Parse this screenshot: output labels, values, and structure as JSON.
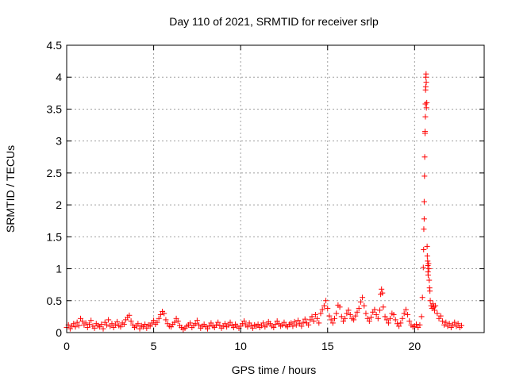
{
  "chart_data": {
    "type": "scatter",
    "title": "Day 110 of 2021, SRMTID for receiver srlp",
    "xlabel": "GPS time / hours",
    "ylabel": "SRMTID / TECUs",
    "xlim": [
      0,
      24
    ],
    "ylim": [
      0,
      4.5
    ],
    "xticks": [
      0,
      5,
      10,
      15,
      20
    ],
    "xtick_labels": [
      "0",
      "5",
      "10",
      "15",
      "20"
    ],
    "yticks": [
      0,
      0.5,
      1,
      1.5,
      2,
      2.5,
      3,
      3.5,
      4,
      4.5
    ],
    "ytick_labels": [
      "0",
      "0.5",
      "1",
      "1.5",
      "2",
      "2.5",
      "3",
      "3.5",
      "4",
      "4.5"
    ],
    "grid": true,
    "marker": "+",
    "color": "#ff0000",
    "series": [
      {
        "name": "SRMTID",
        "points": [
          [
            0.0,
            0.08
          ],
          [
            0.1,
            0.12
          ],
          [
            0.2,
            0.06
          ],
          [
            0.3,
            0.1
          ],
          [
            0.4,
            0.14
          ],
          [
            0.5,
            0.09
          ],
          [
            0.6,
            0.16
          ],
          [
            0.7,
            0.11
          ],
          [
            0.8,
            0.22
          ],
          [
            0.9,
            0.18
          ],
          [
            1.0,
            0.12
          ],
          [
            1.1,
            0.15
          ],
          [
            1.2,
            0.08
          ],
          [
            1.3,
            0.13
          ],
          [
            1.4,
            0.19
          ],
          [
            1.5,
            0.1
          ],
          [
            1.6,
            0.07
          ],
          [
            1.7,
            0.14
          ],
          [
            1.8,
            0.11
          ],
          [
            1.9,
            0.09
          ],
          [
            2.0,
            0.13
          ],
          [
            2.1,
            0.06
          ],
          [
            2.2,
            0.16
          ],
          [
            2.3,
            0.12
          ],
          [
            2.4,
            0.2
          ],
          [
            2.5,
            0.1
          ],
          [
            2.6,
            0.14
          ],
          [
            2.7,
            0.08
          ],
          [
            2.8,
            0.12
          ],
          [
            2.9,
            0.17
          ],
          [
            3.0,
            0.11
          ],
          [
            3.1,
            0.09
          ],
          [
            3.2,
            0.15
          ],
          [
            3.3,
            0.13
          ],
          [
            3.4,
            0.2
          ],
          [
            3.5,
            0.24
          ],
          [
            3.6,
            0.27
          ],
          [
            3.7,
            0.18
          ],
          [
            3.8,
            0.12
          ],
          [
            3.9,
            0.08
          ],
          [
            4.0,
            0.1
          ],
          [
            4.1,
            0.14
          ],
          [
            4.2,
            0.06
          ],
          [
            4.3,
            0.11
          ],
          [
            4.4,
            0.09
          ],
          [
            4.5,
            0.13
          ],
          [
            4.6,
            0.07
          ],
          [
            4.7,
            0.12
          ],
          [
            4.8,
            0.1
          ],
          [
            4.9,
            0.15
          ],
          [
            5.0,
            0.19
          ],
          [
            5.1,
            0.13
          ],
          [
            5.2,
            0.16
          ],
          [
            5.3,
            0.22
          ],
          [
            5.4,
            0.28
          ],
          [
            5.5,
            0.33
          ],
          [
            5.6,
            0.3
          ],
          [
            5.7,
            0.2
          ],
          [
            5.8,
            0.14
          ],
          [
            5.9,
            0.1
          ],
          [
            6.0,
            0.09
          ],
          [
            6.1,
            0.13
          ],
          [
            6.2,
            0.16
          ],
          [
            6.3,
            0.22
          ],
          [
            6.4,
            0.18
          ],
          [
            6.5,
            0.11
          ],
          [
            6.6,
            0.08
          ],
          [
            6.7,
            0.05
          ],
          [
            6.8,
            0.07
          ],
          [
            6.9,
            0.1
          ],
          [
            7.0,
            0.12
          ],
          [
            7.1,
            0.15
          ],
          [
            7.2,
            0.08
          ],
          [
            7.3,
            0.11
          ],
          [
            7.4,
            0.14
          ],
          [
            7.5,
            0.19
          ],
          [
            7.6,
            0.12
          ],
          [
            7.7,
            0.07
          ],
          [
            7.8,
            0.1
          ],
          [
            7.9,
            0.13
          ],
          [
            8.0,
            0.09
          ],
          [
            8.1,
            0.06
          ],
          [
            8.2,
            0.11
          ],
          [
            8.3,
            0.15
          ],
          [
            8.4,
            0.1
          ],
          [
            8.5,
            0.08
          ],
          [
            8.6,
            0.12
          ],
          [
            8.7,
            0.16
          ],
          [
            8.8,
            0.11
          ],
          [
            8.9,
            0.07
          ],
          [
            9.0,
            0.1
          ],
          [
            9.1,
            0.14
          ],
          [
            9.2,
            0.09
          ],
          [
            9.3,
            0.12
          ],
          [
            9.4,
            0.16
          ],
          [
            9.5,
            0.11
          ],
          [
            9.6,
            0.08
          ],
          [
            9.7,
            0.13
          ],
          [
            9.8,
            0.1
          ],
          [
            9.9,
            0.07
          ],
          [
            10.0,
            0.1
          ],
          [
            10.1,
            0.14
          ],
          [
            10.2,
            0.18
          ],
          [
            10.3,
            0.12
          ],
          [
            10.4,
            0.09
          ],
          [
            10.5,
            0.15
          ],
          [
            10.6,
            0.11
          ],
          [
            10.7,
            0.07
          ],
          [
            10.8,
            0.12
          ],
          [
            10.9,
            0.1
          ],
          [
            11.0,
            0.13
          ],
          [
            11.1,
            0.08
          ],
          [
            11.2,
            0.11
          ],
          [
            11.3,
            0.15
          ],
          [
            11.4,
            0.09
          ],
          [
            11.5,
            0.12
          ],
          [
            11.6,
            0.17
          ],
          [
            11.7,
            0.14
          ],
          [
            11.8,
            0.1
          ],
          [
            11.9,
            0.08
          ],
          [
            12.0,
            0.13
          ],
          [
            12.1,
            0.18
          ],
          [
            12.2,
            0.14
          ],
          [
            12.3,
            0.1
          ],
          [
            12.4,
            0.12
          ],
          [
            12.5,
            0.16
          ],
          [
            12.6,
            0.11
          ],
          [
            12.7,
            0.09
          ],
          [
            12.8,
            0.13
          ],
          [
            12.9,
            0.15
          ],
          [
            13.0,
            0.1
          ],
          [
            13.1,
            0.17
          ],
          [
            13.2,
            0.12
          ],
          [
            13.3,
            0.19
          ],
          [
            13.4,
            0.14
          ],
          [
            13.5,
            0.1
          ],
          [
            13.6,
            0.16
          ],
          [
            13.7,
            0.21
          ],
          [
            13.8,
            0.15
          ],
          [
            13.9,
            0.12
          ],
          [
            14.0,
            0.2
          ],
          [
            14.1,
            0.25
          ],
          [
            14.2,
            0.18
          ],
          [
            14.3,
            0.28
          ],
          [
            14.4,
            0.22
          ],
          [
            14.5,
            0.15
          ],
          [
            14.6,
            0.3
          ],
          [
            14.7,
            0.36
          ],
          [
            14.8,
            0.42
          ],
          [
            14.9,
            0.5
          ],
          [
            15.0,
            0.38
          ],
          [
            15.1,
            0.26
          ],
          [
            15.2,
            0.2
          ],
          [
            15.3,
            0.15
          ],
          [
            15.4,
            0.22
          ],
          [
            15.5,
            0.3
          ],
          [
            15.6,
            0.43
          ],
          [
            15.7,
            0.4
          ],
          [
            15.8,
            0.25
          ],
          [
            15.9,
            0.18
          ],
          [
            16.0,
            0.22
          ],
          [
            16.1,
            0.3
          ],
          [
            16.2,
            0.35
          ],
          [
            16.3,
            0.28
          ],
          [
            16.4,
            0.22
          ],
          [
            16.5,
            0.2
          ],
          [
            16.6,
            0.26
          ],
          [
            16.7,
            0.32
          ],
          [
            16.8,
            0.38
          ],
          [
            16.9,
            0.48
          ],
          [
            17.0,
            0.55
          ],
          [
            17.1,
            0.42
          ],
          [
            17.2,
            0.3
          ],
          [
            17.3,
            0.22
          ],
          [
            17.4,
            0.18
          ],
          [
            17.5,
            0.24
          ],
          [
            17.6,
            0.32
          ],
          [
            17.7,
            0.36
          ],
          [
            17.8,
            0.28
          ],
          [
            17.9,
            0.22
          ],
          [
            18.0,
            0.35
          ],
          [
            18.05,
            0.6
          ],
          [
            18.1,
            0.68
          ],
          [
            18.15,
            0.62
          ],
          [
            18.2,
            0.4
          ],
          [
            18.3,
            0.25
          ],
          [
            18.4,
            0.2
          ],
          [
            18.5,
            0.15
          ],
          [
            18.6,
            0.22
          ],
          [
            18.7,
            0.3
          ],
          [
            18.8,
            0.28
          ],
          [
            18.9,
            0.2
          ],
          [
            19.0,
            0.14
          ],
          [
            19.1,
            0.1
          ],
          [
            19.2,
            0.15
          ],
          [
            19.3,
            0.22
          ],
          [
            19.4,
            0.3
          ],
          [
            19.5,
            0.36
          ],
          [
            19.6,
            0.28
          ],
          [
            19.7,
            0.18
          ],
          [
            19.8,
            0.12
          ],
          [
            19.9,
            0.09
          ],
          [
            20.0,
            0.1
          ],
          [
            20.1,
            0.13
          ],
          [
            20.2,
            0.08
          ],
          [
            20.3,
            0.12
          ],
          [
            20.4,
            0.25
          ],
          [
            20.45,
            0.55
          ],
          [
            20.5,
            1.02
          ],
          [
            20.52,
            1.3
          ],
          [
            20.53,
            1.62
          ],
          [
            20.55,
            1.78
          ],
          [
            20.55,
            2.05
          ],
          [
            20.57,
            2.45
          ],
          [
            20.58,
            2.75
          ],
          [
            20.6,
            3.15
          ],
          [
            20.6,
            3.12
          ],
          [
            20.62,
            3.38
          ],
          [
            20.62,
            3.58
          ],
          [
            20.63,
            3.8
          ],
          [
            20.64,
            3.85
          ],
          [
            20.65,
            4.0
          ],
          [
            20.66,
            4.05
          ],
          [
            20.67,
            3.92
          ],
          [
            20.68,
            3.52
          ],
          [
            20.7,
            3.6
          ],
          [
            20.72,
            1.35
          ],
          [
            20.73,
            1.2
          ],
          [
            20.75,
            1.12
          ],
          [
            20.76,
            1.05
          ],
          [
            20.77,
            0.95
          ],
          [
            20.78,
            0.9
          ],
          [
            20.8,
            1.08
          ],
          [
            20.82,
            1.0
          ],
          [
            20.84,
            0.82
          ],
          [
            20.86,
            0.7
          ],
          [
            20.88,
            0.65
          ],
          [
            20.9,
            0.5
          ],
          [
            20.95,
            0.42
          ],
          [
            21.0,
            0.38
          ],
          [
            21.05,
            0.45
          ],
          [
            21.1,
            0.4
          ],
          [
            21.15,
            0.35
          ],
          [
            21.2,
            0.42
          ],
          [
            21.3,
            0.3
          ],
          [
            21.4,
            0.22
          ],
          [
            21.5,
            0.26
          ],
          [
            21.6,
            0.18
          ],
          [
            21.7,
            0.12
          ],
          [
            21.8,
            0.16
          ],
          [
            21.9,
            0.1
          ],
          [
            22.0,
            0.14
          ],
          [
            22.1,
            0.08
          ],
          [
            22.2,
            0.12
          ],
          [
            22.3,
            0.16
          ],
          [
            22.4,
            0.1
          ],
          [
            22.5,
            0.14
          ],
          [
            22.6,
            0.08
          ],
          [
            22.7,
            0.11
          ]
        ]
      }
    ]
  }
}
